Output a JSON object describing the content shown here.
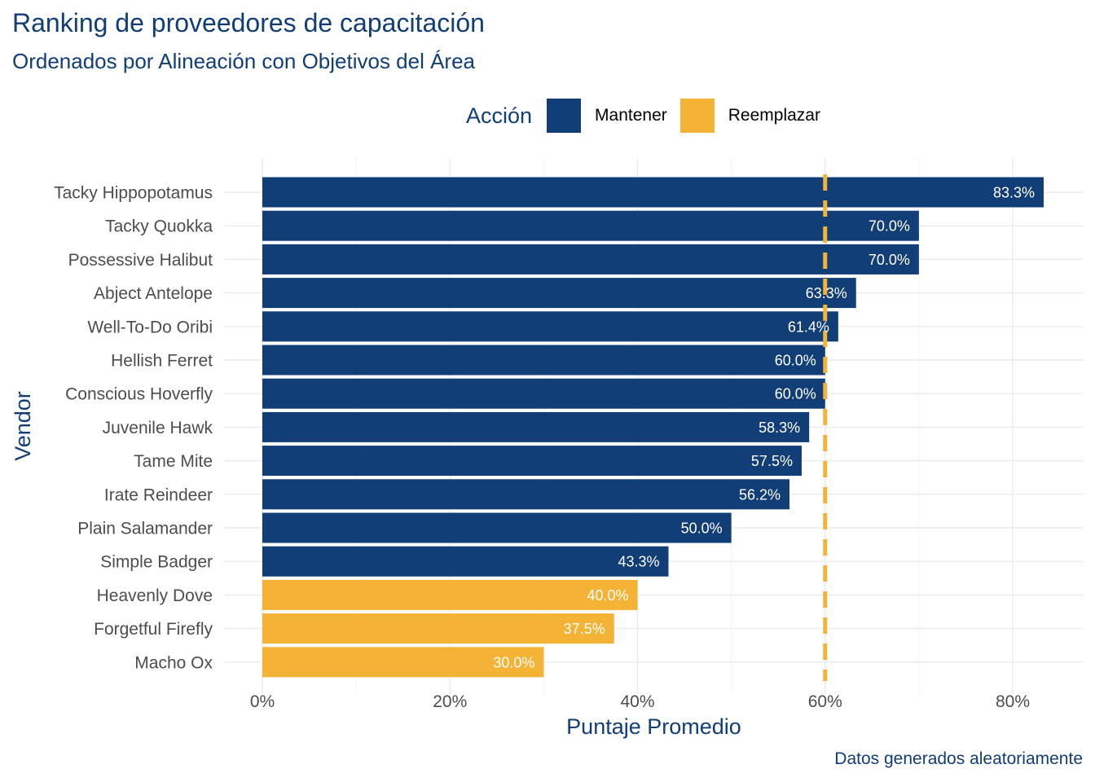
{
  "chart_data": {
    "type": "bar",
    "orientation": "horizontal",
    "title": "Ranking de proveedores de capacitación",
    "subtitle": "Ordenados por Alineación con Objetivos del Área",
    "xlabel": "Puntaje Promedio",
    "ylabel": "Vendor",
    "caption": "Datos generados aleatoriamente",
    "xlim": [
      0,
      0.87
    ],
    "x_ticks": [
      0,
      0.2,
      0.4,
      0.6,
      0.8
    ],
    "x_tick_labels": [
      "0%",
      "20%",
      "40%",
      "60%",
      "80%"
    ],
    "threshold": 0.6,
    "threshold_color": "#f5b335",
    "grid": true,
    "legend": {
      "title": "Acción",
      "position": "top",
      "items": [
        {
          "label": "Mantener",
          "color": "#123e78"
        },
        {
          "label": "Reemplazar",
          "color": "#f5b335"
        }
      ]
    },
    "bars": [
      {
        "vendor": "Tacky Hippopotamus",
        "value": 0.833,
        "label": "83.3%",
        "action": "Mantener"
      },
      {
        "vendor": "Tacky Quokka",
        "value": 0.7,
        "label": "70.0%",
        "action": "Mantener"
      },
      {
        "vendor": "Possessive Halibut",
        "value": 0.7,
        "label": "70.0%",
        "action": "Mantener"
      },
      {
        "vendor": "Abject Antelope",
        "value": 0.633,
        "label": "63.3%",
        "action": "Mantener"
      },
      {
        "vendor": "Well-To-Do Oribi",
        "value": 0.614,
        "label": "61.4%",
        "action": "Mantener"
      },
      {
        "vendor": "Hellish Ferret",
        "value": 0.6,
        "label": "60.0%",
        "action": "Mantener"
      },
      {
        "vendor": "Conscious Hoverfly",
        "value": 0.6,
        "label": "60.0%",
        "action": "Mantener"
      },
      {
        "vendor": "Juvenile Hawk",
        "value": 0.583,
        "label": "58.3%",
        "action": "Mantener"
      },
      {
        "vendor": "Tame Mite",
        "value": 0.575,
        "label": "57.5%",
        "action": "Mantener"
      },
      {
        "vendor": "Irate Reindeer",
        "value": 0.562,
        "label": "56.2%",
        "action": "Mantener"
      },
      {
        "vendor": "Plain Salamander",
        "value": 0.5,
        "label": "50.0%",
        "action": "Mantener"
      },
      {
        "vendor": "Simple Badger",
        "value": 0.433,
        "label": "43.3%",
        "action": "Mantener"
      },
      {
        "vendor": "Heavenly Dove",
        "value": 0.4,
        "label": "40.0%",
        "action": "Reemplazar"
      },
      {
        "vendor": "Forgetful Firefly",
        "value": 0.375,
        "label": "37.5%",
        "action": "Reemplazar"
      },
      {
        "vendor": "Macho Ox",
        "value": 0.3,
        "label": "30.0%",
        "action": "Reemplazar"
      }
    ]
  }
}
